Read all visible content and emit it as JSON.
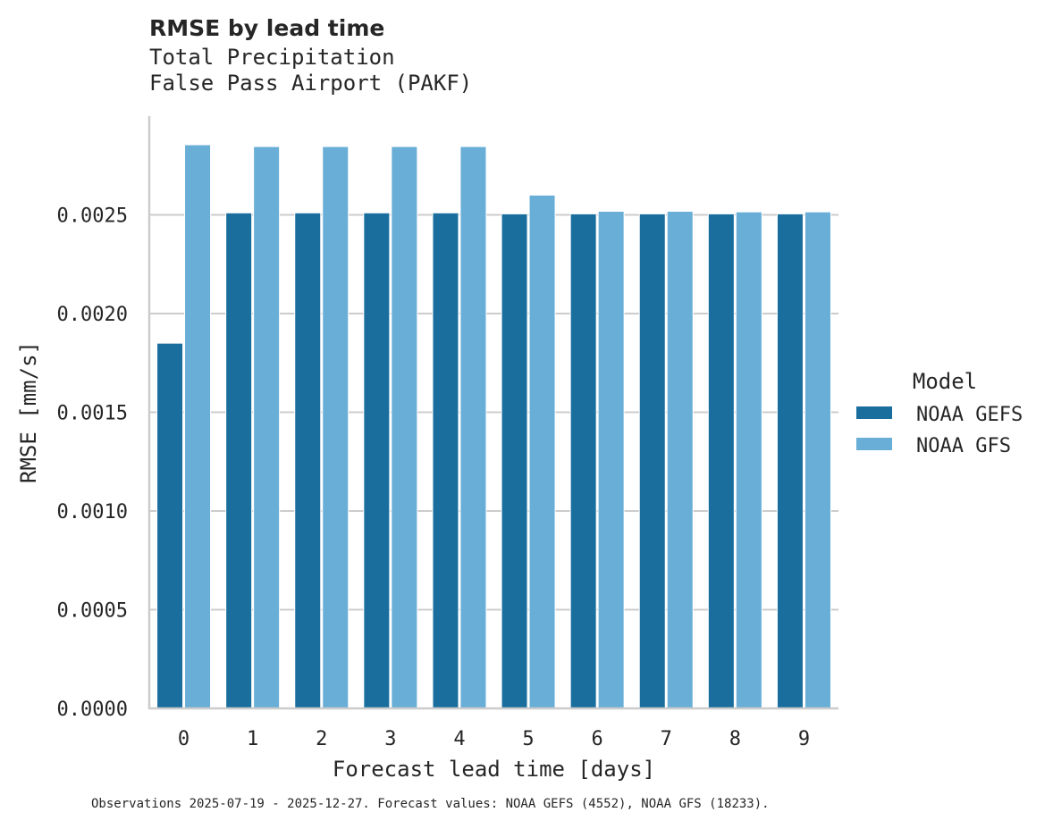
{
  "chart_data": {
    "type": "bar",
    "title": "RMSE by lead time",
    "subtitle_lines": [
      "Total Precipitation",
      "False Pass Airport (PAKF)"
    ],
    "xlabel": "Forecast lead time [days]",
    "ylabel": "RMSE [mm/s]",
    "categories": [
      "0",
      "1",
      "2",
      "3",
      "4",
      "5",
      "6",
      "7",
      "8",
      "9"
    ],
    "ylim": [
      0,
      0.003
    ],
    "yticks": [
      "0.0000",
      "0.0005",
      "0.0010",
      "0.0015",
      "0.0020",
      "0.0025"
    ],
    "grid": "horizontal",
    "legend": {
      "title": "Model",
      "placement": "right"
    },
    "series": [
      {
        "name": "NOAA GEFS",
        "color": "#1a6e9e",
        "values": [
          0.00185,
          0.00251,
          0.00251,
          0.00251,
          0.00251,
          0.002505,
          0.002505,
          0.002505,
          0.002505,
          0.002505
        ]
      },
      {
        "name": "NOAA GFS",
        "color": "#68aed6",
        "values": [
          0.002855,
          0.002846,
          0.002846,
          0.002846,
          0.002846,
          0.0026,
          0.002518,
          0.002518,
          0.002515,
          0.002515
        ]
      }
    ],
    "footer": "Observations 2025-07-19 - 2025-12-27. Forecast values: NOAA GEFS (4552), NOAA GFS (18233)."
  }
}
